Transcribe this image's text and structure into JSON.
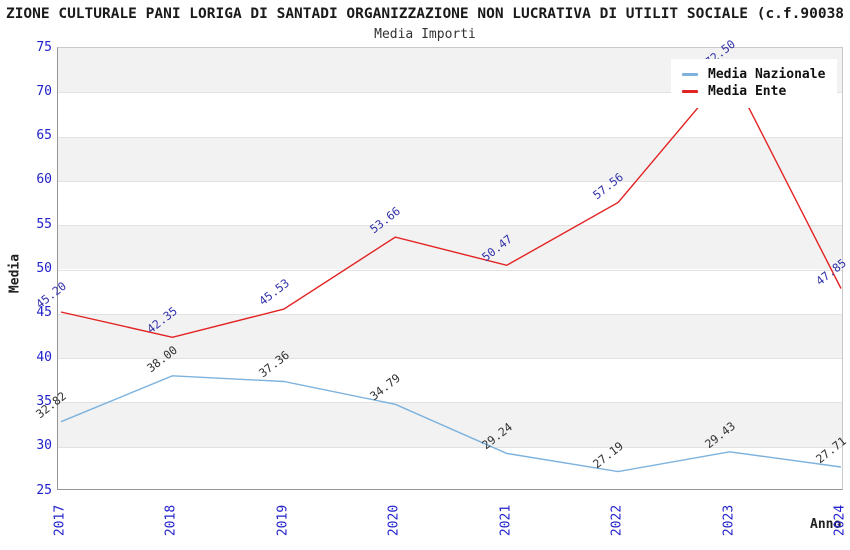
{
  "chart_data": {
    "type": "line",
    "title": "ZIONE CULTURALE PANI LORIGA DI SANTADI ORGANIZZAZIONE NON LUCRATIVA DI UTILIT SOCIALE (c.f.90038",
    "subtitle": "Media Importi",
    "xlabel": "Anno",
    "ylabel": "Media",
    "categories": [
      "2017",
      "2018",
      "2019",
      "2020",
      "2021",
      "2022",
      "2023",
      "2024"
    ],
    "series": [
      {
        "name": "Media Nazionale",
        "color": "#7cb2dd",
        "label_color": "#333333",
        "values": [
          32.82,
          38.0,
          37.36,
          34.79,
          29.24,
          27.19,
          29.43,
          27.71
        ]
      },
      {
        "name": "Media Ente",
        "color": "#e32222",
        "label_color": "#3333aa",
        "values": [
          45.2,
          42.35,
          45.53,
          53.66,
          50.47,
          57.56,
          72.5,
          47.85
        ]
      }
    ],
    "ylim": [
      25,
      75
    ],
    "ytick_step": 5,
    "tick_color": "#2222cc",
    "band_color": "#f2f2f2",
    "gridline_color": "#e2e2e2",
    "legend_position": "top-right",
    "grid": "horizontal-alternating-bands"
  }
}
